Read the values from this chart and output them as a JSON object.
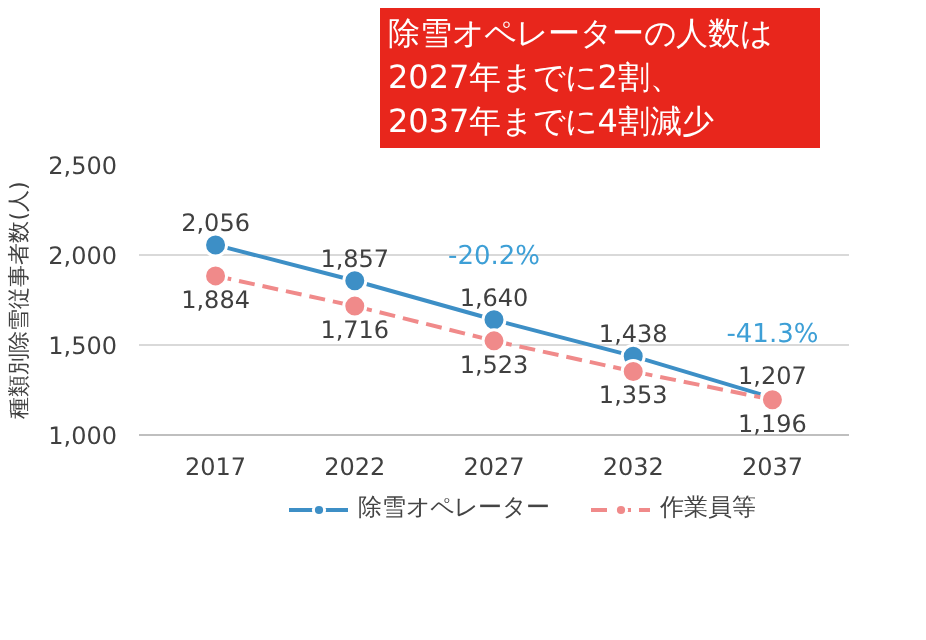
{
  "chart_data": {
    "type": "line",
    "ylabel": "種類別除雪従事者数(人)",
    "categories": [
      "2017",
      "2022",
      "2027",
      "2032",
      "2037"
    ],
    "series": [
      {
        "name": "除雪オペレーター",
        "color": "#3d8fc6",
        "values": [
          2056,
          1857,
          1640,
          1438,
          1207
        ],
        "line_style": "solid",
        "value_labels": [
          "2,056",
          "1,857",
          "1,640",
          "1,438",
          "1,207"
        ]
      },
      {
        "name": "作業員等",
        "color": "#f08a8a",
        "values": [
          1884,
          1716,
          1523,
          1353,
          1196
        ],
        "line_style": "dashed",
        "value_labels": [
          "1,884",
          "1,716",
          "1,523",
          "1,353",
          "1,196"
        ]
      }
    ],
    "ylim": [
      1000,
      2500
    ],
    "yticks": [
      {
        "value": 1000,
        "label": "1,000"
      },
      {
        "value": 1500,
        "label": "1,500"
      },
      {
        "value": 2000,
        "label": "2,000"
      },
      {
        "value": 2500,
        "label": "2,500"
      }
    ],
    "grid": "y",
    "legend": "bottom",
    "marker": "circle",
    "annotations": [
      "除雪オペレーターの人数は\n2027年までに2割、\n2037年までに4割減少",
      "-20.2%",
      "-41.3%"
    ]
  }
}
